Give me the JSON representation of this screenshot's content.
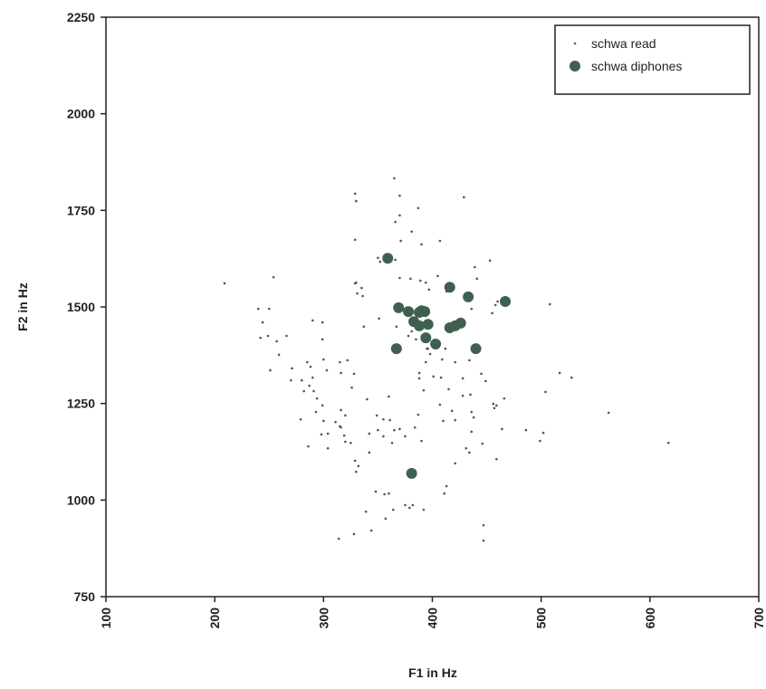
{
  "chart_data": {
    "type": "scatter",
    "xlabel": "F1 in Hz",
    "ylabel": "F2 in Hz",
    "xlim": [
      100,
      700
    ],
    "ylim": [
      750,
      2250
    ],
    "xticks": [
      100,
      200,
      300,
      400,
      500,
      600,
      700
    ],
    "yticks": [
      750,
      1000,
      1250,
      1500,
      1750,
      2000,
      2250
    ],
    "legend": "upper right",
    "series": [
      {
        "name": "schwa read",
        "color": "#555555",
        "size": "small",
        "x": [
          209,
          254,
          240,
          250,
          244,
          257,
          242,
          249,
          266,
          259,
          270,
          271,
          285,
          288,
          290,
          251,
          290,
          299,
          299,
          300,
          279,
          280,
          282,
          286,
          294,
          287,
          293,
          304,
          303,
          315,
          316,
          322,
          326,
          328,
          316,
          304,
          311,
          315,
          320,
          316,
          300,
          299,
          291,
          298,
          340,
          350,
          349,
          355,
          342,
          342,
          319,
          325,
          329,
          360,
          361,
          363,
          360,
          348,
          330,
          332,
          355,
          365,
          370,
          375,
          384,
          390,
          387,
          388,
          392,
          388,
          394,
          395,
          398,
          409,
          412,
          415,
          418,
          407,
          410,
          421,
          428,
          434,
          435,
          428,
          436,
          436,
          445,
          449,
          446,
          434,
          431,
          421,
          413,
          411,
          421,
          438,
          457,
          456,
          466,
          459,
          464,
          459,
          486,
          504,
          508,
          517,
          528,
          562,
          617,
          502,
          499,
          344,
          339,
          357,
          364,
          375,
          379,
          382,
          392,
          314,
          328,
          447,
          447,
          356,
          320,
          365,
          329,
          330,
          370,
          370,
          387,
          381,
          390,
          407,
          429,
          371,
          366,
          352,
          370,
          380,
          389,
          394,
          397,
          405,
          413,
          441,
          439,
          453,
          330,
          335,
          331,
          329,
          329,
          350,
          366,
          336,
          351,
          337,
          367,
          378,
          381,
          385,
          396,
          401,
          408,
          455,
          458,
          460,
          436
        ],
        "values": [
          1561,
          1577,
          1495,
          1495,
          1460,
          1411,
          1420,
          1425,
          1425,
          1376,
          1310,
          1341,
          1357,
          1345,
          1317,
          1336,
          1465,
          1416,
          1460,
          1364,
          1209,
          1310,
          1282,
          1139,
          1263,
          1296,
          1228,
          1172,
          1336,
          1357,
          1329,
          1362,
          1291,
          1327,
          1233,
          1134,
          1202,
          1191,
          1219,
          1188,
          1205,
          1245,
          1282,
          1170,
          1261,
          1181,
          1219,
          1209,
          1172,
          1123,
          1167,
          1148,
          1102,
          1268,
          1207,
          1148,
          1017,
          1022,
          1073,
          1088,
          1165,
          1181,
          1184,
          1165,
          1188,
          1153,
          1221,
          1315,
          1284,
          1329,
          1357,
          1392,
          1378,
          1364,
          1392,
          1287,
          1231,
          1247,
          1205,
          1357,
          1315,
          1362,
          1273,
          1270,
          1177,
          1228,
          1327,
          1308,
          1146,
          1123,
          1134,
          1095,
          1036,
          1017,
          1207,
          1214,
          1238,
          1249,
          1263,
          1245,
          1184,
          1106,
          1181,
          1280,
          1507,
          1329,
          1317,
          1226,
          1148,
          1174,
          1153,
          921,
          970,
          952,
          975,
          987,
          980,
          987,
          975,
          900,
          912,
          935,
          895,
          1015,
          1151,
          1833,
          1793,
          1774,
          1788,
          1737,
          1756,
          1695,
          1662,
          1671,
          1784,
          1671,
          1622,
          1617,
          1575,
          1573,
          1568,
          1563,
          1545,
          1580,
          1540,
          1573,
          1603,
          1620,
          1563,
          1549,
          1535,
          1561,
          1674,
          1627,
          1720,
          1528,
          1470,
          1449,
          1449,
          1425,
          1437,
          1416,
          1392,
          1320,
          1317,
          1484,
          1505,
          1514,
          1495
        ]
      },
      {
        "name": "schwa diphones",
        "color": "#3f6050",
        "size": "large",
        "x": [
          359,
          416,
          433,
          467,
          369,
          378,
          388,
          390,
          393,
          383,
          388,
          396,
          394,
          403,
          367,
          416,
          421,
          426,
          440,
          381
        ],
        "values": [
          1626,
          1551,
          1526,
          1514,
          1498,
          1488,
          1486,
          1490,
          1488,
          1462,
          1451,
          1455,
          1420,
          1404,
          1392,
          1446,
          1451,
          1458,
          1392,
          1069
        ]
      }
    ]
  }
}
